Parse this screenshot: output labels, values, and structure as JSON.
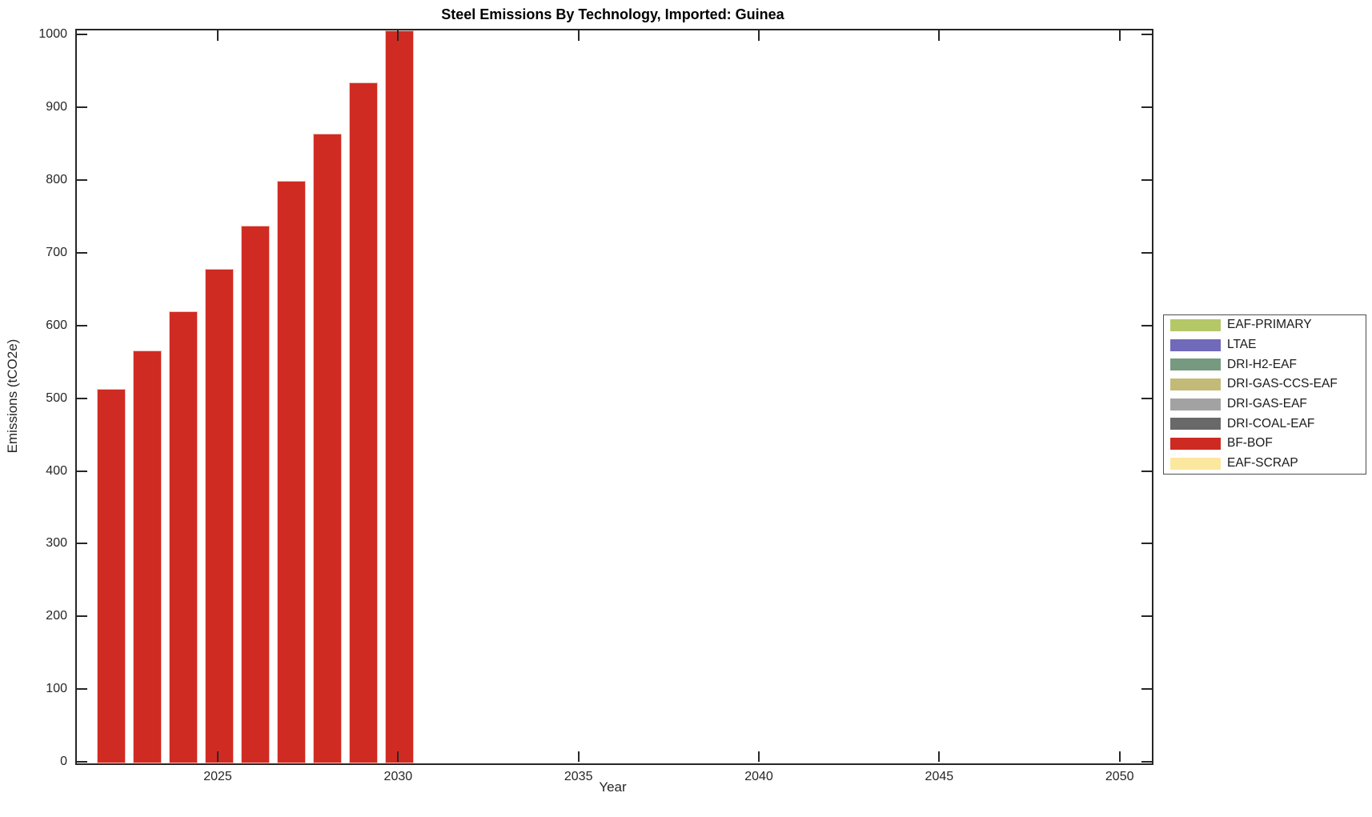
{
  "chart_data": {
    "type": "bar",
    "title": "Steel Emissions By Technology, Imported: Guinea",
    "xlabel": "Year",
    "ylabel": "Emissions (tCO2e)",
    "series_name": "BF-BOF",
    "x": [
      2022,
      2023,
      2024,
      2025,
      2026,
      2027,
      2028,
      2029,
      2030
    ],
    "values": [
      515,
      568,
      622,
      680,
      739,
      801,
      866,
      936,
      1008
    ],
    "bar_color": "#d02b22",
    "bar_edge_color": "#f1c4bd",
    "xlim": [
      2021.05,
      2050.85
    ],
    "ylim": [
      0,
      1008
    ],
    "xticks": [
      2025,
      2030,
      2035,
      2040,
      2045,
      2050
    ],
    "yticks": [
      0,
      100,
      200,
      300,
      400,
      500,
      600,
      700,
      800,
      900,
      1000
    ],
    "grid": false,
    "legend_position": "outside-right",
    "legend": [
      {
        "label": "EAF-PRIMARY",
        "color": "#b4c868"
      },
      {
        "label": "LTAE",
        "color": "#7169ba"
      },
      {
        "label": "DRI-H2-EAF",
        "color": "#769a7f"
      },
      {
        "label": "DRI-GAS-CCS-EAF",
        "color": "#c4ba78"
      },
      {
        "label": "DRI-GAS-EAF",
        "color": "#a2a2a2"
      },
      {
        "label": "DRI-COAL-EAF",
        "color": "#696969"
      },
      {
        "label": "BF-BOF",
        "color": "#cd2a21"
      },
      {
        "label": "EAF-SCRAP",
        "color": "#fce79e"
      }
    ],
    "axis_color": "#262626",
    "text_color": "#262626"
  }
}
